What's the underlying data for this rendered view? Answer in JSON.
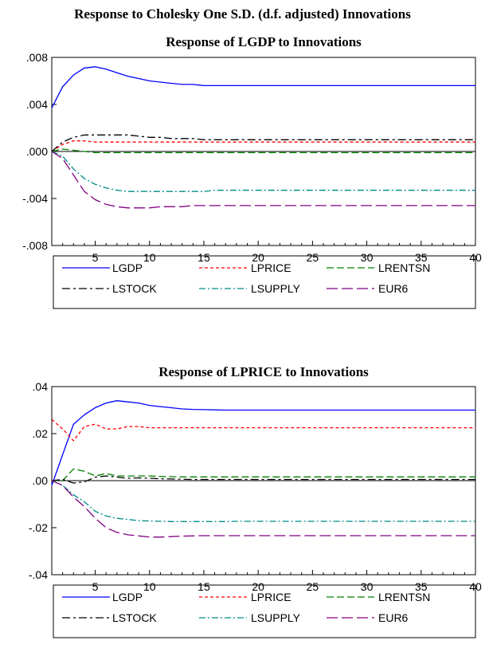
{
  "main_title": "Response to Cholesky One S.D. (d.f. adjusted) Innovations",
  "legend_entries": [
    {
      "name": "LGDP",
      "color": "#0000ff",
      "dash": "none"
    },
    {
      "name": "LPRICE",
      "color": "#ff0000",
      "dash": "4,3"
    },
    {
      "name": "LRENTSN",
      "color": "#008000",
      "dash": "9,4"
    },
    {
      "name": "LSTOCK",
      "color": "#000000",
      "dash": "10,4,3,4"
    },
    {
      "name": "LSUPPLY",
      "color": "#008b8b",
      "dash": "8,3,2,3"
    },
    {
      "name": "EUR6",
      "color": "#800080",
      "dash": "14,5"
    }
  ],
  "chart_data": [
    {
      "type": "line",
      "title": "Response of LGDP to Innovations",
      "xlim": [
        1,
        40
      ],
      "ylim": [
        -0.008,
        0.008
      ],
      "x_ticks": [
        5,
        10,
        15,
        20,
        25,
        30,
        35,
        40
      ],
      "y_ticks": [
        {
          "value": 0.008,
          "label": ".008"
        },
        {
          "value": 0.004,
          "label": ".004"
        },
        {
          "value": 0.0,
          "label": ".000"
        },
        {
          "value": -0.004,
          "label": "-.004"
        },
        {
          "value": -0.008,
          "label": "-.008"
        }
      ],
      "x": [
        1,
        2,
        3,
        4,
        5,
        6,
        7,
        8,
        9,
        10,
        11,
        12,
        13,
        14,
        15,
        16,
        17,
        18,
        19,
        20,
        25,
        30,
        35,
        40
      ],
      "series": [
        {
          "name": "LGDP",
          "values": [
            0.0037,
            0.0055,
            0.0065,
            0.0071,
            0.0072,
            0.007,
            0.0067,
            0.0064,
            0.0062,
            0.006,
            0.0059,
            0.0058,
            0.0057,
            0.0057,
            0.0056,
            0.0056,
            0.0056,
            0.0056,
            0.0056,
            0.0056,
            0.0056,
            0.0056,
            0.0056,
            0.0056
          ]
        },
        {
          "name": "LPRICE",
          "values": [
            0.0,
            0.0006,
            0.0009,
            0.0009,
            0.0008,
            0.0008,
            0.0008,
            0.0008,
            0.0008,
            0.0008,
            0.0008,
            0.0008,
            0.0008,
            0.0008,
            0.0008,
            0.0008,
            0.0008,
            0.0008,
            0.0008,
            0.0008,
            0.0008,
            0.0008,
            0.0008,
            0.0008
          ]
        },
        {
          "name": "LRENTSN",
          "values": [
            0.0,
            0.0002,
            0.0001,
            0.0,
            -0.0001,
            -0.0001,
            -0.0001,
            -0.0001,
            -0.0001,
            -0.0001,
            -0.0001,
            -0.0001,
            -0.0001,
            -0.0001,
            -0.0001,
            -0.0001,
            -0.0001,
            -0.0001,
            -0.0001,
            -0.0001,
            -0.0001,
            -0.0001,
            -0.0001,
            -0.0001
          ]
        },
        {
          "name": "LSTOCK",
          "values": [
            0.0,
            0.0008,
            0.0012,
            0.0014,
            0.0014,
            0.0014,
            0.0014,
            0.0014,
            0.0013,
            0.0012,
            0.0012,
            0.0011,
            0.0011,
            0.0011,
            0.001,
            0.001,
            0.001,
            0.001,
            0.001,
            0.001,
            0.001,
            0.001,
            0.001,
            0.001
          ]
        },
        {
          "name": "LSUPPLY",
          "values": [
            0.0,
            -0.0004,
            -0.0015,
            -0.0023,
            -0.0028,
            -0.0031,
            -0.0033,
            -0.0034,
            -0.0034,
            -0.0034,
            -0.0034,
            -0.0034,
            -0.0034,
            -0.0034,
            -0.0034,
            -0.0033,
            -0.0033,
            -0.0033,
            -0.0033,
            -0.0033,
            -0.0033,
            -0.0033,
            -0.0033,
            -0.0033
          ]
        },
        {
          "name": "EUR6",
          "values": [
            0.0,
            -0.0006,
            -0.002,
            -0.0034,
            -0.0041,
            -0.0045,
            -0.0047,
            -0.0048,
            -0.0048,
            -0.0048,
            -0.0047,
            -0.0047,
            -0.0047,
            -0.0046,
            -0.0046,
            -0.0046,
            -0.0046,
            -0.0046,
            -0.0046,
            -0.0046,
            -0.0046,
            -0.0046,
            -0.0046,
            -0.0046
          ]
        }
      ]
    },
    {
      "type": "line",
      "title": "Response of LPRICE to Innovations",
      "xlim": [
        1,
        40
      ],
      "ylim": [
        -0.04,
        0.04
      ],
      "x_ticks": [
        5,
        10,
        15,
        20,
        25,
        30,
        35,
        40
      ],
      "y_ticks": [
        {
          "value": 0.04,
          "label": ".04"
        },
        {
          "value": 0.02,
          "label": ".02"
        },
        {
          "value": 0.0,
          "label": ".00"
        },
        {
          "value": -0.02,
          "label": "-.02"
        },
        {
          "value": -0.04,
          "label": "-.04"
        }
      ],
      "x": [
        1,
        2,
        3,
        4,
        5,
        6,
        7,
        8,
        9,
        10,
        11,
        12,
        13,
        14,
        15,
        16,
        17,
        18,
        19,
        20,
        25,
        30,
        35,
        40
      ],
      "series": [
        {
          "name": "LGDP",
          "values": [
            -0.002,
            0.011,
            0.024,
            0.028,
            0.031,
            0.033,
            0.034,
            0.0335,
            0.033,
            0.032,
            0.0315,
            0.031,
            0.0305,
            0.0303,
            0.0302,
            0.0301,
            0.03,
            0.03,
            0.03,
            0.03,
            0.03,
            0.03,
            0.03,
            0.03
          ]
        },
        {
          "name": "LPRICE",
          "values": [
            0.026,
            0.022,
            0.017,
            0.023,
            0.024,
            0.022,
            0.022,
            0.023,
            0.023,
            0.0225,
            0.0225,
            0.0225,
            0.0225,
            0.0225,
            0.0225,
            0.0225,
            0.0225,
            0.0225,
            0.0225,
            0.0225,
            0.0225,
            0.0225,
            0.0225,
            0.0225
          ]
        },
        {
          "name": "LRENTSN",
          "values": [
            0.0,
            0.0,
            0.005,
            0.004,
            0.002,
            0.003,
            0.002,
            0.002,
            0.002,
            0.002,
            0.0018,
            0.0017,
            0.0016,
            0.0016,
            0.0016,
            0.0016,
            0.0016,
            0.0016,
            0.0016,
            0.0016,
            0.0016,
            0.0016,
            0.0016,
            0.0016
          ]
        },
        {
          "name": "LSTOCK",
          "values": [
            0.0,
            0.0005,
            -0.001,
            -0.0005,
            0.0015,
            0.002,
            0.0015,
            0.001,
            0.0012,
            0.001,
            0.0008,
            0.0007,
            0.0006,
            0.0005,
            0.0005,
            0.0005,
            0.0005,
            0.0005,
            0.0005,
            0.0005,
            0.0005,
            0.0005,
            0.0005,
            0.0005
          ]
        },
        {
          "name": "LSUPPLY",
          "values": [
            0.0,
            -0.002,
            -0.006,
            -0.009,
            -0.013,
            -0.015,
            -0.016,
            -0.0165,
            -0.017,
            -0.0172,
            -0.0173,
            -0.0174,
            -0.0174,
            -0.0174,
            -0.0174,
            -0.0174,
            -0.0174,
            -0.0173,
            -0.0173,
            -0.0173,
            -0.0173,
            -0.0173,
            -0.0173,
            -0.0173
          ]
        },
        {
          "name": "EUR6",
          "values": [
            0.0,
            -0.002,
            -0.007,
            -0.011,
            -0.016,
            -0.02,
            -0.022,
            -0.023,
            -0.0235,
            -0.024,
            -0.024,
            -0.0238,
            -0.0236,
            -0.0235,
            -0.0234,
            -0.0234,
            -0.0234,
            -0.0234,
            -0.0234,
            -0.0234,
            -0.0234,
            -0.0234,
            -0.0234,
            -0.0234
          ]
        }
      ]
    }
  ]
}
